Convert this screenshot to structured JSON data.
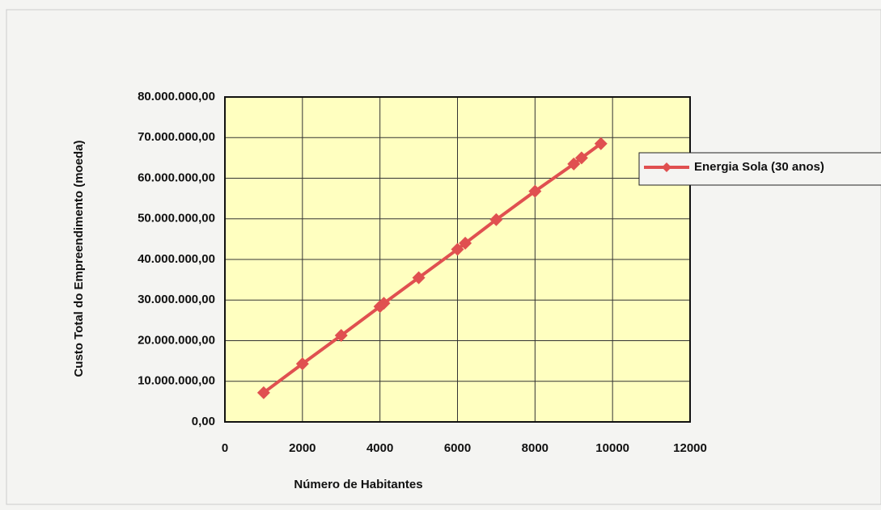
{
  "chart_data": {
    "type": "line",
    "x_label": "Número de Habitantes",
    "y_label": "Custo Total do Empreendimento (moeda)",
    "series": [
      {
        "name": "Energia Sola (30 anos)",
        "color": "#e05050",
        "x": [
          1000,
          2000,
          3000,
          4000,
          4100,
          5000,
          6000,
          6200,
          7000,
          8000,
          9000,
          9200,
          9700
        ],
        "values": [
          7200000,
          14300000,
          21300000,
          28400000,
          29200000,
          35500000,
          42500000,
          44000000,
          49800000,
          56800000,
          63500000,
          65000000,
          68500000
        ]
      }
    ],
    "xlim": [
      0,
      12000
    ],
    "xticks": [
      0,
      2000,
      4000,
      6000,
      8000,
      10000,
      12000
    ],
    "ylim": [
      0,
      80000000
    ],
    "yticks": [
      {
        "value": 0,
        "label": "0,00"
      },
      {
        "value": 10000000,
        "label": "10.000.000,00"
      },
      {
        "value": 20000000,
        "label": "20.000.000,00"
      },
      {
        "value": 30000000,
        "label": "30.000.000,00"
      },
      {
        "value": 40000000,
        "label": "40.000.000,00"
      },
      {
        "value": 50000000,
        "label": "50.000.000,00"
      },
      {
        "value": 60000000,
        "label": "60.000.000,00"
      },
      {
        "value": 70000000,
        "label": "70.000.000,00"
      },
      {
        "value": 80000000,
        "label": "80.000.000,00"
      }
    ],
    "grid": true,
    "plot_background": "#ffffc0",
    "legend": "right"
  }
}
